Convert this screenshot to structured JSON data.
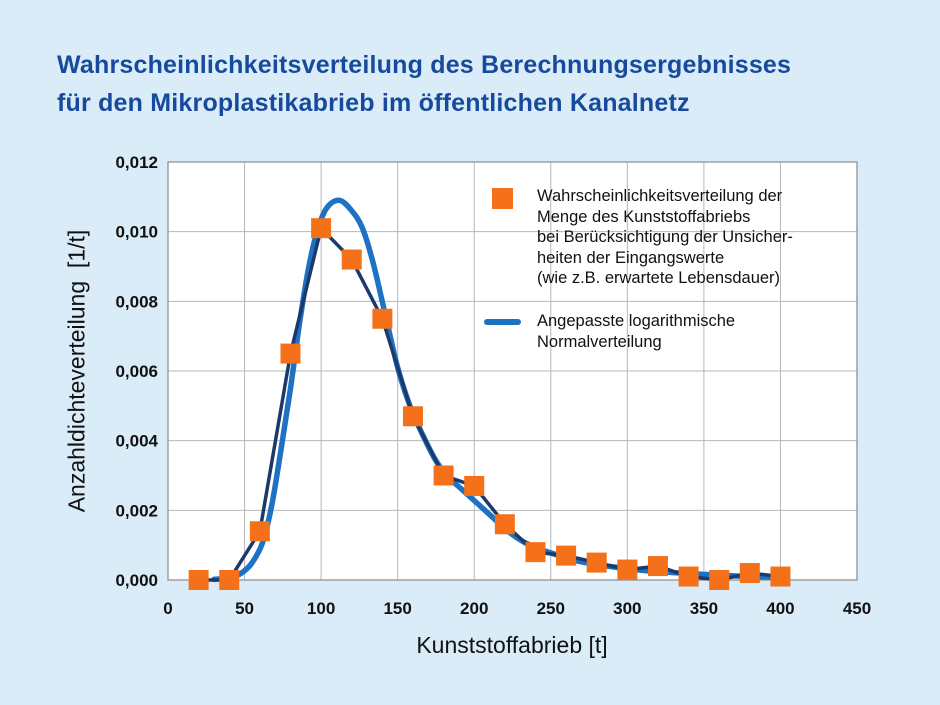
{
  "title": {
    "line1": "Wahrscheinlichkeitsverteilung des Berechnungsergebnisses",
    "line2": "für den Mikroplastikabrieb im öffentlichen Kanalnetz"
  },
  "chart_data": {
    "type": "line",
    "title": "Wahrscheinlichkeitsverteilung des Berechnungsergebnisses für den Mikroplastikabrieb im öffentlichen Kanalnetz",
    "xlabel": "Kunststoffabrieb [t]",
    "ylabel": "Anzahldichteverteilung  [1/t]",
    "xlim": [
      0,
      450
    ],
    "ylim": [
      0,
      0.012
    ],
    "grid": true,
    "legend_position": "inside-top-right",
    "x_ticks": [
      0,
      50,
      100,
      150,
      200,
      250,
      300,
      350,
      400,
      450
    ],
    "x_tick_labels": [
      "0",
      "50",
      "100",
      "150",
      "200",
      "250",
      "300",
      "350",
      "400",
      "450"
    ],
    "y_ticks": [
      0,
      0.002,
      0.004,
      0.006,
      0.008,
      0.01,
      0.012
    ],
    "y_tick_labels": [
      "0,000",
      "0,002",
      "0,004",
      "0,006",
      "0,008",
      "0,010",
      "0,012"
    ],
    "series": [
      {
        "name": "Wahrscheinlichkeitsverteilung der Menge des Kunststoffabriebs bei Berücksichtigung der Unsicherheiten der Eingangswerte (wie z.B. erwartete Lebensdauer)",
        "type": "scatter-line",
        "marker": "square",
        "x": [
          20,
          40,
          60,
          80,
          100,
          120,
          140,
          160,
          180,
          200,
          220,
          240,
          260,
          280,
          300,
          320,
          340,
          360,
          380,
          400
        ],
        "y": [
          0.0,
          0.0,
          0.0014,
          0.0065,
          0.0101,
          0.0092,
          0.0075,
          0.0047,
          0.003,
          0.0027,
          0.0016,
          0.0008,
          0.0007,
          0.0005,
          0.0003,
          0.0004,
          0.0001,
          0.0,
          0.0002,
          0.0001
        ]
      },
      {
        "name": "Angepasste logarithmische Normalverteilung",
        "type": "line",
        "points": [
          [
            30,
            2e-05
          ],
          [
            40,
            6e-05
          ],
          [
            48,
            0.0002
          ],
          [
            55,
            0.0005
          ],
          [
            62,
            0.0011
          ],
          [
            68,
            0.0022
          ],
          [
            74,
            0.0038
          ],
          [
            80,
            0.0055
          ],
          [
            86,
            0.0074
          ],
          [
            92,
            0.009
          ],
          [
            98,
            0.0101
          ],
          [
            104,
            0.0107
          ],
          [
            112,
            0.0109
          ],
          [
            120,
            0.0106
          ],
          [
            127,
            0.0101
          ],
          [
            134,
            0.0091
          ],
          [
            142,
            0.0076
          ],
          [
            150,
            0.0061
          ],
          [
            158,
            0.005
          ],
          [
            166,
            0.0042
          ],
          [
            174,
            0.0035
          ],
          [
            182,
            0.003
          ],
          [
            192,
            0.0026
          ],
          [
            202,
            0.0022
          ],
          [
            212,
            0.0018
          ],
          [
            222,
            0.0014
          ],
          [
            232,
            0.0011
          ],
          [
            242,
            0.0009
          ],
          [
            252,
            0.00075
          ],
          [
            262,
            0.0006
          ],
          [
            275,
            0.00048
          ],
          [
            290,
            0.00038
          ],
          [
            305,
            0.0003
          ],
          [
            320,
            0.00024
          ],
          [
            335,
            0.0002
          ],
          [
            350,
            0.00016
          ],
          [
            365,
            0.00013
          ],
          [
            380,
            0.0001
          ],
          [
            400,
            8e-05
          ]
        ]
      }
    ]
  },
  "legend": {
    "item1_lines": [
      "Wahrscheinlichkeitsverteilung der",
      "Menge des Kunststoffabriebs",
      "bei Berücksichtigung der Unsicher-",
      "heiten der Eingangswerte",
      "(wie z.B. erwartete Lebensdauer)"
    ],
    "item2_lines": [
      "Angepasste logarithmische",
      "Normalverteilung"
    ]
  },
  "colors": {
    "page_bg": "#d9ecf8",
    "title_blue": "#17499c",
    "plot_bg": "#ffffff",
    "grid": "#b4b7ba",
    "plot_border": "#909497",
    "curve_blue": "#1e72c4",
    "data_line_navy": "#1c3a69",
    "marker_orange": "#f4711a",
    "text": "#111111"
  }
}
